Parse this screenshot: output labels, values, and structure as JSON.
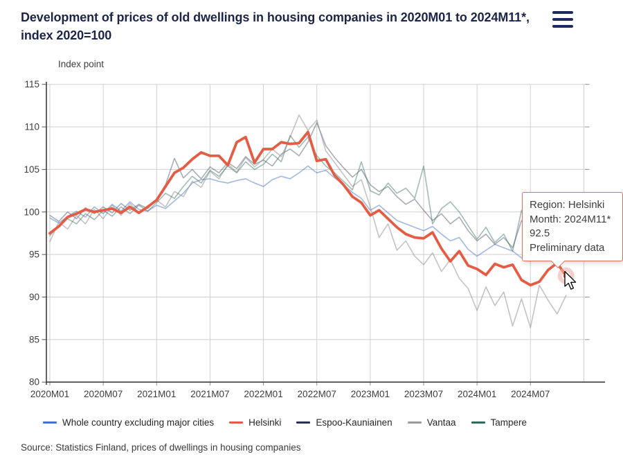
{
  "header": {
    "title_line1": "Development of prices of old dwellings in housing companies in 2020M01 to 2024M11*,",
    "title_line2": "index 2020=100",
    "menu_icon": "hamburger-icon"
  },
  "tooltip": {
    "lines": [
      "Region: Helsinki",
      "Month: 2024M11*",
      "92.5",
      "Preliminary data"
    ]
  },
  "source": "Source: Statistics Finland, prices of dwellings in housing companies",
  "colors": {
    "title_navy": "#1c2547",
    "menu_icon": "#1e2a5e",
    "tooltip_border": "#e0705c",
    "grid": "#cfcfcf",
    "axis": "#3d3d3d"
  },
  "chart_data": {
    "type": "line",
    "title": "Development of prices of old dwellings in housing companies in 2020M01 to 2024M11*, index 2020=100",
    "xlabel": "",
    "ylabel": "Index point",
    "ylim": [
      80,
      115
    ],
    "grid": true,
    "legend_position": "bottom",
    "y_ticks": [
      80,
      85,
      90,
      95,
      100,
      105,
      110,
      115
    ],
    "x_tick_labels": [
      "2020M01",
      "2020M07",
      "2021M01",
      "2021M07",
      "2022M01",
      "2022M07",
      "2023M01",
      "2023M07",
      "2024M01",
      "2024M07"
    ],
    "x": [
      "2020M01",
      "2020M02",
      "2020M03",
      "2020M04",
      "2020M05",
      "2020M06",
      "2020M07",
      "2020M08",
      "2020M09",
      "2020M10",
      "2020M11",
      "2020M12",
      "2021M01",
      "2021M02",
      "2021M03",
      "2021M04",
      "2021M05",
      "2021M06",
      "2021M07",
      "2021M08",
      "2021M09",
      "2021M10",
      "2021M11",
      "2021M12",
      "2022M01",
      "2022M02",
      "2022M03",
      "2022M04",
      "2022M05",
      "2022M06",
      "2022M07",
      "2022M08",
      "2022M09",
      "2022M10",
      "2022M11",
      "2022M12",
      "2023M01",
      "2023M02",
      "2023M03",
      "2023M04",
      "2023M05",
      "2023M06",
      "2023M07",
      "2023M08",
      "2023M09",
      "2023M10",
      "2023M11",
      "2023M12",
      "2024M01",
      "2024M02",
      "2024M03",
      "2024M04",
      "2024M05",
      "2024M06",
      "2024M07",
      "2024M08",
      "2024M09",
      "2024M10",
      "2024M11"
    ],
    "series": [
      {
        "id": "whole-country",
        "name": "Whole country excluding major cities",
        "color": "#4472c4",
        "values": [
          99.3,
          98.7,
          99.5,
          100.1,
          99.4,
          100.6,
          99.8,
          100.9,
          100.1,
          101.2,
          100.3,
          100.1,
          100.8,
          100.4,
          101.3,
          102.2,
          103.4,
          103.8,
          103.9,
          103.6,
          103.4,
          103.7,
          103.9,
          103.4,
          103.0,
          103.8,
          104.2,
          103.9,
          104.6,
          105.4,
          104.6,
          104.9,
          104.0,
          103.2,
          102.3,
          101.6,
          100.2,
          100.8,
          99.9,
          99.0,
          98.6,
          98.2,
          97.8,
          98.3,
          97.4,
          96.6,
          97.0,
          95.6,
          94.8,
          95.5,
          96.2,
          95.8,
          95.4,
          94.6,
          94.2,
          94.8,
          95.4,
          95.8,
          95.2
        ]
      },
      {
        "id": "helsinki",
        "name": "Helsinki",
        "color": "#e45c44",
        "values": [
          97.5,
          98.3,
          99.4,
          99.8,
          100.3,
          100.0,
          100.2,
          100.4,
          99.9,
          100.6,
          99.9,
          100.6,
          101.4,
          103.0,
          104.6,
          105.2,
          106.2,
          107.0,
          106.6,
          106.6,
          105.5,
          108.2,
          108.8,
          105.8,
          107.4,
          107.4,
          108.2,
          108.0,
          108.1,
          109.4,
          106.0,
          106.2,
          104.3,
          103.2,
          101.8,
          101.1,
          99.6,
          100.2,
          99.2,
          98.2,
          97.4,
          97.0,
          96.9,
          97.6,
          95.7,
          94.2,
          95.4,
          93.7,
          93.3,
          92.6,
          93.9,
          93.5,
          93.8,
          92.0,
          91.4,
          91.8,
          93.2,
          94.0,
          92.5
        ]
      },
      {
        "id": "espoo-kauniainen",
        "name": "Espoo-Kauniainen",
        "color": "#27304f",
        "values": [
          99.6,
          98.9,
          100.0,
          99.2,
          100.5,
          99.8,
          100.6,
          99.9,
          101.0,
          100.2,
          100.9,
          100.4,
          101.5,
          103.2,
          106.3,
          104.0,
          105.0,
          103.9,
          105.3,
          104.6,
          105.8,
          105.1,
          106.5,
          105.6,
          106.1,
          105.4,
          106.8,
          107.4,
          106.6,
          108.2,
          110.5,
          107.8,
          106.4,
          105.2,
          104.1,
          105.0,
          103.2,
          102.4,
          103.0,
          101.8,
          100.9,
          101.5,
          100.2,
          99.0,
          99.8,
          98.6,
          99.4,
          97.8,
          96.6,
          97.4,
          96.2,
          97.0,
          95.8,
          99.0,
          97.0,
          95.8,
          96.6,
          97.2,
          96.2
        ]
      },
      {
        "id": "vantaa",
        "name": "Vantaa",
        "color": "#9b9b9b",
        "values": [
          96.5,
          98.8,
          98.0,
          99.6,
          98.6,
          100.3,
          99.2,
          100.8,
          99.6,
          101.0,
          99.9,
          100.6,
          101.4,
          100.6,
          102.4,
          101.8,
          103.6,
          102.9,
          104.8,
          103.9,
          105.6,
          104.7,
          106.4,
          105.3,
          106.2,
          107.4,
          106.5,
          108.8,
          111.4,
          109.6,
          110.8,
          107.2,
          105.8,
          104.4,
          103.0,
          103.8,
          100.6,
          97.0,
          98.6,
          95.5,
          96.6,
          94.8,
          93.8,
          95.2,
          93.0,
          94.4,
          92.2,
          91.0,
          88.4,
          91.2,
          89.0,
          90.6,
          86.6,
          89.8,
          86.4,
          91.4,
          89.6,
          88.0,
          90.2
        ]
      },
      {
        "id": "tampere",
        "name": "Tampere",
        "color": "#2e6b5c",
        "values": [
          97.2,
          98.4,
          99.2,
          98.6,
          99.8,
          99.1,
          100.2,
          99.5,
          100.6,
          99.8,
          100.8,
          100.1,
          101.1,
          102.2,
          101.6,
          103.0,
          104.2,
          103.4,
          104.9,
          104.2,
          105.4,
          104.6,
          105.9,
          105.0,
          105.6,
          106.8,
          105.9,
          109.0,
          107.6,
          108.8,
          106.6,
          105.4,
          104.6,
          103.6,
          102.6,
          105.9,
          102.5,
          102.0,
          103.4,
          102.2,
          102.8,
          101.6,
          105.4,
          98.6,
          100.4,
          101.2,
          100.0,
          98.4,
          96.8,
          98.2,
          96.4,
          97.4,
          95.4,
          100.2,
          96.6,
          97.6,
          96.0,
          96.8,
          96.4
        ]
      }
    ],
    "highlight": {
      "series": "Helsinki",
      "month": "2024M11",
      "value": 92.5,
      "note": "Preliminary data"
    }
  }
}
